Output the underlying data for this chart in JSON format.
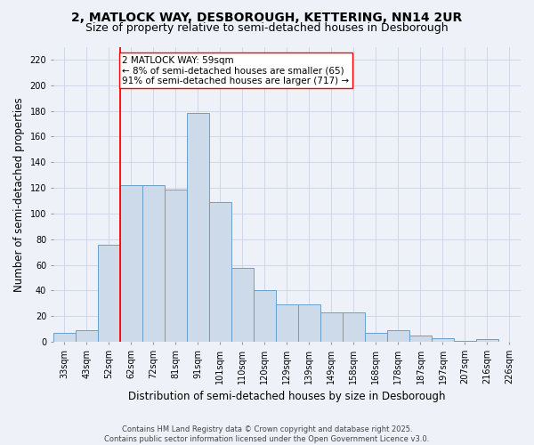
{
  "title_line1": "2, MATLOCK WAY, DESBOROUGH, KETTERING, NN14 2UR",
  "title_line2": "Size of property relative to semi-detached houses in Desborough",
  "xlabel": "Distribution of semi-detached houses by size in Desborough",
  "ylabel": "Number of semi-detached properties",
  "categories": [
    "33sqm",
    "43sqm",
    "52sqm",
    "62sqm",
    "72sqm",
    "81sqm",
    "91sqm",
    "101sqm",
    "110sqm",
    "120sqm",
    "129sqm",
    "139sqm",
    "149sqm",
    "158sqm",
    "168sqm",
    "178sqm",
    "187sqm",
    "197sqm",
    "207sqm",
    "216sqm",
    "226sqm"
  ],
  "bar_values": [
    7,
    9,
    76,
    122,
    122,
    119,
    178,
    109,
    58,
    40,
    29,
    29,
    23,
    23,
    7,
    9,
    5,
    3,
    1,
    2,
    0
  ],
  "bar_facecolor": "#ccdaea",
  "bar_edgecolor": "#6a9fc8",
  "vline_color": "red",
  "annotation_text": "2 MATLOCK WAY: 59sqm\n← 8% of semi-detached houses are smaller (65)\n91% of semi-detached houses are larger (717) →",
  "annotation_box_color": "white",
  "annotation_box_edgecolor": "red",
  "ylim": [
    0,
    230
  ],
  "yticks": [
    0,
    20,
    40,
    60,
    80,
    100,
    120,
    140,
    160,
    180,
    200,
    220
  ],
  "grid_color": "#c8d4e8",
  "background_color": "#eef2f8",
  "footer_text": "Contains HM Land Registry data © Crown copyright and database right 2025.\nContains public sector information licensed under the Open Government Licence v3.0.",
  "title_fontsize": 10,
  "subtitle_fontsize": 9,
  "axis_label_fontsize": 8.5,
  "tick_fontsize": 7,
  "annotation_fontsize": 7.5,
  "footer_fontsize": 6
}
